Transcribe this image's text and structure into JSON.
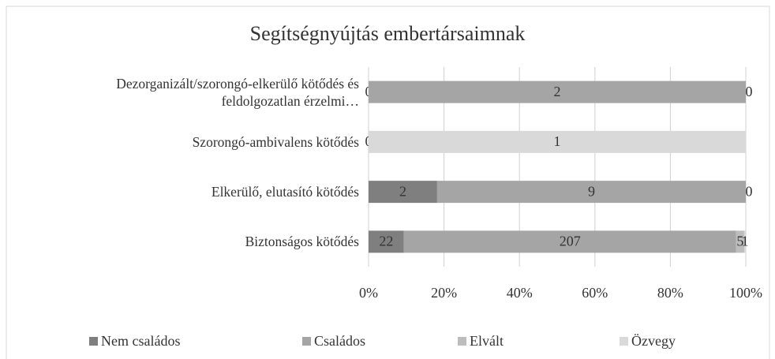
{
  "chart_data": {
    "type": "stacked-bar-100",
    "title": "Segítségnyújtás embertársaimnak",
    "categories": [
      "Dezorganizált/szorongó-elkerülő kötődés és feldolgozatlan érzelmi…",
      "Szorongó-ambivalens kötődés",
      "Elkerülő, elutasító kötődés",
      "Biztonságos kötődés"
    ],
    "series": [
      {
        "name": "Nem családos",
        "color": "#7f7f7f",
        "values": [
          0,
          0,
          2,
          22
        ]
      },
      {
        "name": "Családos",
        "color": "#a5a5a5",
        "values": [
          2,
          null,
          9,
          207
        ]
      },
      {
        "name": "Elvált",
        "color": "#bdbdbd",
        "values": [
          0,
          null,
          0,
          5
        ]
      },
      {
        "name": "Özvegy",
        "color": "#d9d9d9",
        "values": [
          null,
          1,
          null,
          1
        ]
      }
    ],
    "xlim": [
      0,
      100
    ],
    "xticks": [
      {
        "value": 0,
        "label": "0%"
      },
      {
        "value": 20,
        "label": "20%"
      },
      {
        "value": 40,
        "label": "40%"
      },
      {
        "value": 60,
        "label": "60%"
      },
      {
        "value": 80,
        "label": "80%"
      },
      {
        "value": 100,
        "label": "100%"
      }
    ],
    "grid": true,
    "legend": "bottom"
  }
}
